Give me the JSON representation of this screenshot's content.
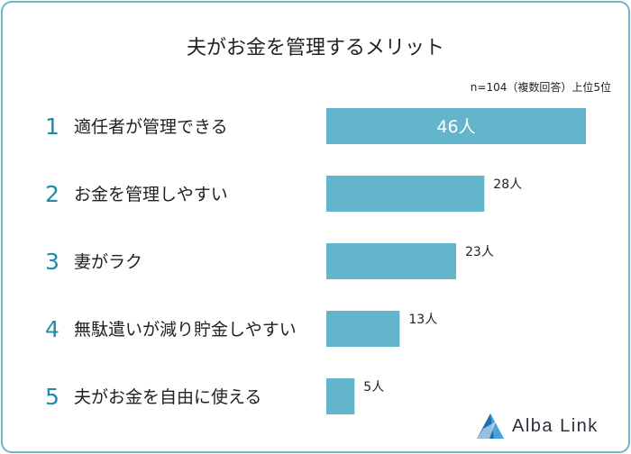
{
  "title": "夫がお金を管理するメリット",
  "note": "n=104（複数回答）上位5位",
  "logo": {
    "text": "Alba Link",
    "icon": "alba-link-triangle-logo"
  },
  "colors": {
    "bar": "#63b5cc",
    "rank": "#1d8cab",
    "border": "#6cb6cc"
  },
  "chart_data": {
    "type": "bar",
    "orientation": "horizontal",
    "ranks": [
      "1",
      "2",
      "3",
      "4",
      "5"
    ],
    "categories": [
      "適任者が管理できる",
      "お金を管理しやすい",
      "妻がラク",
      "無駄遣いが減り貯金しやすい",
      "夫がお金を自由に使える"
    ],
    "values": [
      46,
      28,
      23,
      13,
      5
    ],
    "value_labels": [
      "46人",
      "28人",
      "23人",
      "13人",
      "5人"
    ],
    "xlim": [
      0,
      46
    ],
    "grid": false,
    "legend": false
  }
}
